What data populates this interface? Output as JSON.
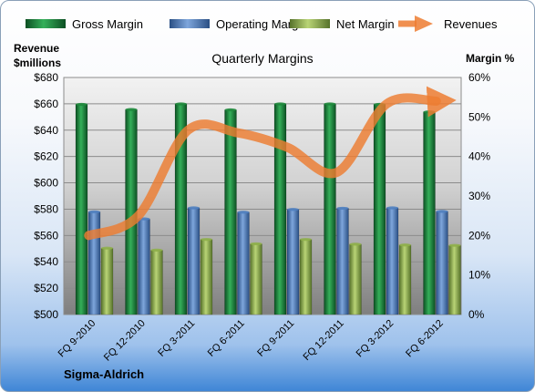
{
  "chart_data": {
    "type": "bar",
    "title": "Quarterly Margins",
    "categories": [
      "FQ 9-2010",
      "FQ 12-2010",
      "FQ 3-2011",
      "FQ 6-2011",
      "FQ 9-2011",
      "FQ 12-2011",
      "FQ 3-2012",
      "FQ 6-2012"
    ],
    "left_axis": {
      "label_line1": "Revenue",
      "label_line2": "$millions",
      "min": 500,
      "max": 680,
      "step": 20,
      "prefix": "$"
    },
    "right_axis": {
      "label": "Margin %",
      "min": 0,
      "max": 60,
      "step": 10,
      "suffix": "%"
    },
    "series": [
      {
        "name": "Gross Margin",
        "type": "bar",
        "axis": "right",
        "color": "#1e8a3c",
        "values": [
          53.2,
          51.9,
          53.3,
          51.8,
          53.3,
          53.3,
          53.2,
          51.3
        ]
      },
      {
        "name": "Operating Margin",
        "type": "bar",
        "axis": "right",
        "color": "#4f7fc0",
        "values": [
          26.0,
          24.2,
          27.0,
          25.9,
          26.6,
          26.9,
          27.0,
          26.1
        ]
      },
      {
        "name": "Net Margin",
        "type": "bar",
        "axis": "right",
        "color": "#8fb04a",
        "values": [
          16.8,
          16.3,
          19.0,
          17.9,
          19.0,
          17.8,
          17.6,
          17.5
        ]
      },
      {
        "name": "Revenues",
        "type": "line",
        "axis": "left",
        "color": "#ed7d31",
        "values": [
          560,
          575,
          640,
          638,
          627,
          608,
          660,
          662
        ]
      }
    ],
    "footer": "Sigma-Aldrich",
    "legend_position": "top",
    "grid": true
  }
}
